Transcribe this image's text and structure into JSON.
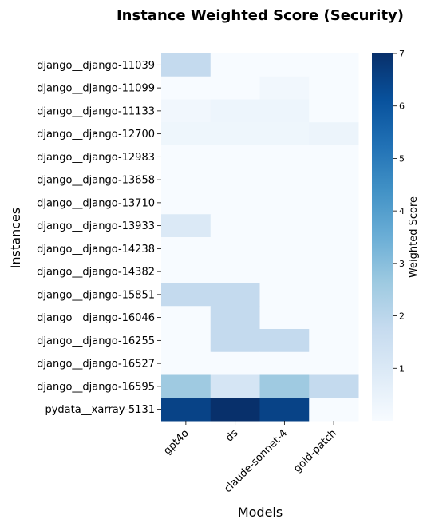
{
  "chart_data": {
    "type": "heatmap",
    "title": "Instance Weighted Score (Security)",
    "xlabel": "Models",
    "ylabel": "Instances",
    "colorbar_label": "Weighted Score",
    "colormap": "Blues",
    "vmin": 0,
    "vmax": 7,
    "colorbar_ticks": [
      1,
      2,
      3,
      4,
      5,
      6,
      7
    ],
    "x_categories": [
      "gpt4o",
      "ds",
      "claude-sonnet-4",
      "gold-patch"
    ],
    "y_categories": [
      "django__django-11039",
      "django__django-11099",
      "django__django-11133",
      "django__django-12700",
      "django__django-12983",
      "django__django-13658",
      "django__django-13710",
      "django__django-13933",
      "django__django-14238",
      "django__django-14382",
      "django__django-15851",
      "django__django-16046",
      "django__django-16255",
      "django__django-16527",
      "django__django-16595",
      "pydata__xarray-5131"
    ],
    "values": [
      [
        1.8,
        0.0,
        0.0,
        0.0
      ],
      [
        0.0,
        0.0,
        0.2,
        0.0
      ],
      [
        0.2,
        0.35,
        0.35,
        0.0
      ],
      [
        0.3,
        0.3,
        0.3,
        0.4
      ],
      [
        0.0,
        0.0,
        0.0,
        0.0
      ],
      [
        0.0,
        0.0,
        0.0,
        0.0
      ],
      [
        0.0,
        0.0,
        0.0,
        0.0
      ],
      [
        1.0,
        0.0,
        0.0,
        0.0
      ],
      [
        0.0,
        0.0,
        0.0,
        0.0
      ],
      [
        0.0,
        0.0,
        0.0,
        0.0
      ],
      [
        1.8,
        1.8,
        0.0,
        0.0
      ],
      [
        0.0,
        1.8,
        0.0,
        0.0
      ],
      [
        0.0,
        1.8,
        1.8,
        0.0
      ],
      [
        0.0,
        0.0,
        0.0,
        0.0
      ],
      [
        2.6,
        1.2,
        2.6,
        1.8
      ],
      [
        6.5,
        7.0,
        6.5,
        0.0
      ]
    ]
  }
}
